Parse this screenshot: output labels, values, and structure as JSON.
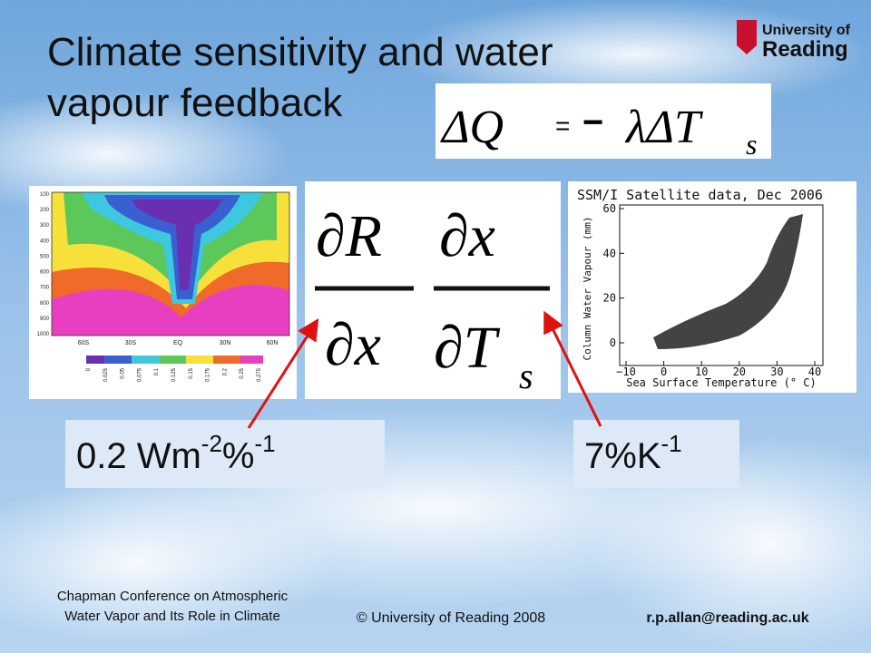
{
  "title": {
    "line1": "Climate sensitivity and water",
    "line2": "vapour feedback"
  },
  "logo": {
    "line1": "University of",
    "line2": "Reading"
  },
  "equation": {
    "lhs": "ΔQ",
    "equals": "=",
    "minus": "−",
    "rhs": "λΔT",
    "subscript": "s"
  },
  "derivatives": {
    "left": {
      "numerator": "∂R",
      "denominator": "∂x"
    },
    "right": {
      "numerator": "∂x",
      "denominator": "∂T",
      "subscript": "s"
    }
  },
  "contour_plot": {
    "y_ticks": [
      "100",
      "200",
      "300",
      "400",
      "500",
      "600",
      "700",
      "800",
      "900",
      "1000"
    ],
    "x_ticks": [
      "60S",
      "30S",
      "EQ",
      "30N",
      "60N"
    ],
    "colorbar_ticks": [
      "0",
      "0.025",
      "0.05",
      "0.075",
      "0.1",
      "0.125",
      "0.15",
      "0.175",
      "0.2",
      "0.25",
      "0.275"
    ]
  },
  "scatter_plot": {
    "title": "SSM/I Satellite data, Dec 2006",
    "x_label": "Sea Surface Temperature (° C)",
    "y_label": "Column Water Vapour (mm)",
    "x_ticks": [
      "−10",
      "0",
      "10",
      "20",
      "30",
      "40"
    ],
    "y_ticks": [
      "0",
      "20",
      "40",
      "60"
    ]
  },
  "labels": {
    "left": {
      "base": "0.2 Wm",
      "sup1": "-2",
      "mid": "%",
      "sup2": "-1"
    },
    "right": {
      "base": "7%K",
      "sup": "-1"
    }
  },
  "footer": {
    "conference_line1": "Chapman Conference on Atmospheric",
    "conference_line2": "Water Vapor and Its Role in Climate",
    "copyright": "© University of Reading 2008",
    "email": "r.p.allan@reading.ac.uk"
  }
}
